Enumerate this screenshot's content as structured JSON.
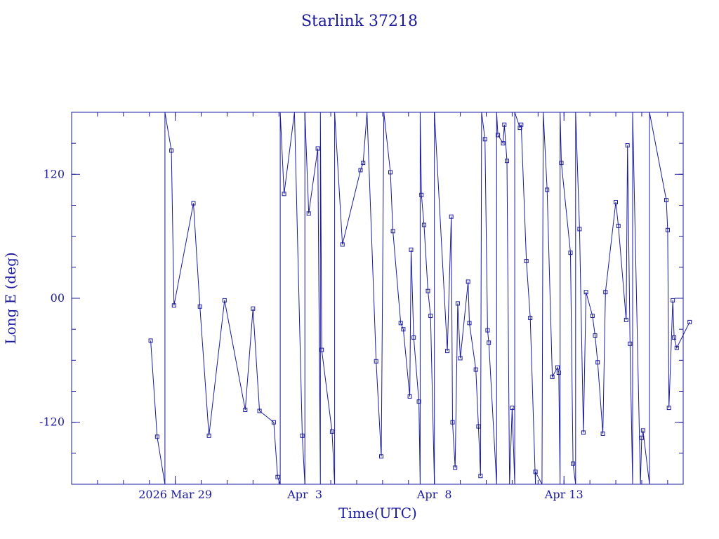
{
  "colors": {
    "ink": "#1a1aa0",
    "background": "#ffffff"
  },
  "chart_data": {
    "type": "line",
    "title": "Starlink 37218",
    "xlabel": "Time(UTC)",
    "ylabel": "Long E (deg)",
    "x_unit": "days from 2026-03-25 00:00 UTC",
    "xlim": [
      0,
      23.6
    ],
    "ylim": [
      -180,
      180
    ],
    "grid": false,
    "marker": "square",
    "x_ticks": [
      {
        "x": 4,
        "label": "2026 Mar 29"
      },
      {
        "x": 9,
        "label": "Apr  3"
      },
      {
        "x": 14,
        "label": "Apr  8"
      },
      {
        "x": 19,
        "label": "Apr 13"
      }
    ],
    "y_ticks": [
      {
        "y": 120,
        "label": "120"
      },
      {
        "y": 0,
        "label": "00"
      },
      {
        "y": -120,
        "label": "-120"
      }
    ],
    "points": [
      [
        3.05,
        -41
      ],
      [
        3.3,
        -134
      ],
      [
        3.6,
        -180
      ],
      [
        3.6,
        180
      ],
      [
        3.85,
        143
      ],
      [
        3.95,
        -7
      ],
      [
        4.7,
        92
      ],
      [
        4.95,
        -8
      ],
      [
        5.3,
        -133
      ],
      [
        5.9,
        -2
      ],
      [
        6.7,
        -108
      ],
      [
        7.0,
        -10
      ],
      [
        7.25,
        -109
      ],
      [
        7.8,
        -120
      ],
      [
        7.95,
        -173
      ],
      [
        8.05,
        -180
      ],
      [
        8.05,
        180
      ],
      [
        8.2,
        101
      ],
      [
        8.6,
        180
      ],
      [
        8.6,
        180
      ],
      [
        8.9,
        -133
      ],
      [
        9.0,
        -180
      ],
      [
        9.0,
        180
      ],
      [
        9.15,
        82
      ],
      [
        9.5,
        145
      ],
      [
        9.6,
        -180
      ],
      [
        9.6,
        180
      ],
      [
        9.65,
        -50
      ],
      [
        10.05,
        -129
      ],
      [
        10.15,
        -180
      ],
      [
        10.15,
        180
      ],
      [
        10.45,
        52
      ],
      [
        11.15,
        124
      ],
      [
        11.25,
        131
      ],
      [
        11.4,
        180
      ],
      [
        11.4,
        180
      ],
      [
        11.75,
        -61
      ],
      [
        11.95,
        -153
      ],
      [
        12.05,
        180
      ],
      [
        12.05,
        180
      ],
      [
        12.3,
        122
      ],
      [
        12.4,
        65
      ],
      [
        12.7,
        -24
      ],
      [
        12.8,
        -30
      ],
      [
        13.05,
        -95
      ],
      [
        13.1,
        47
      ],
      [
        13.2,
        -38
      ],
      [
        13.4,
        -100
      ],
      [
        13.45,
        -180
      ],
      [
        13.45,
        180
      ],
      [
        13.5,
        100
      ],
      [
        13.6,
        71
      ],
      [
        13.75,
        7
      ],
      [
        13.85,
        -17
      ],
      [
        14.0,
        -180
      ],
      [
        14.0,
        180
      ],
      [
        14.5,
        -51
      ],
      [
        14.65,
        79
      ],
      [
        14.7,
        -120
      ],
      [
        14.8,
        -164
      ],
      [
        14.9,
        -5
      ],
      [
        15.0,
        -58
      ],
      [
        15.3,
        16
      ],
      [
        15.35,
        -24
      ],
      [
        15.6,
        -69
      ],
      [
        15.7,
        -124
      ],
      [
        15.78,
        -172
      ],
      [
        15.82,
        180
      ],
      [
        15.95,
        154
      ],
      [
        16.05,
        -31
      ],
      [
        16.1,
        -43
      ],
      [
        16.4,
        -180
      ],
      [
        16.4,
        180
      ],
      [
        16.45,
        158
      ],
      [
        16.65,
        150
      ],
      [
        16.7,
        168
      ],
      [
        16.8,
        133
      ],
      [
        16.9,
        -180
      ],
      [
        17.0,
        -106
      ],
      [
        17.1,
        -180
      ],
      [
        17.1,
        180
      ],
      [
        17.3,
        165
      ],
      [
        17.35,
        168
      ],
      [
        17.55,
        36
      ],
      [
        17.7,
        -19
      ],
      [
        17.9,
        -180
      ],
      [
        17.9,
        -168
      ],
      [
        18.15,
        -180
      ],
      [
        18.2,
        180
      ],
      [
        18.35,
        105
      ],
      [
        18.55,
        -76
      ],
      [
        18.75,
        -67
      ],
      [
        18.8,
        -72
      ],
      [
        18.85,
        -180
      ],
      [
        18.85,
        180
      ],
      [
        18.9,
        131
      ],
      [
        19.25,
        44
      ],
      [
        19.35,
        -160
      ],
      [
        19.45,
        -180
      ],
      [
        19.45,
        180
      ],
      [
        19.6,
        67
      ],
      [
        19.75,
        -130
      ],
      [
        19.85,
        6
      ],
      [
        20.1,
        -17
      ],
      [
        20.2,
        -36
      ],
      [
        20.3,
        -62
      ],
      [
        20.5,
        -131
      ],
      [
        20.6,
        6
      ],
      [
        21.0,
        93
      ],
      [
        21.1,
        70
      ],
      [
        21.4,
        -21
      ],
      [
        21.45,
        148
      ],
      [
        21.55,
        -44
      ],
      [
        21.65,
        -180
      ],
      [
        21.65,
        180
      ],
      [
        21.95,
        -180
      ],
      [
        22.0,
        -135
      ],
      [
        22.05,
        -128
      ],
      [
        22.3,
        -180
      ],
      [
        22.3,
        180
      ],
      [
        22.95,
        95
      ],
      [
        23.0,
        66
      ],
      [
        23.05,
        -106
      ],
      [
        23.2,
        -2
      ],
      [
        23.25,
        -38
      ],
      [
        23.35,
        -48
      ],
      [
        23.85,
        -23
      ]
    ]
  }
}
